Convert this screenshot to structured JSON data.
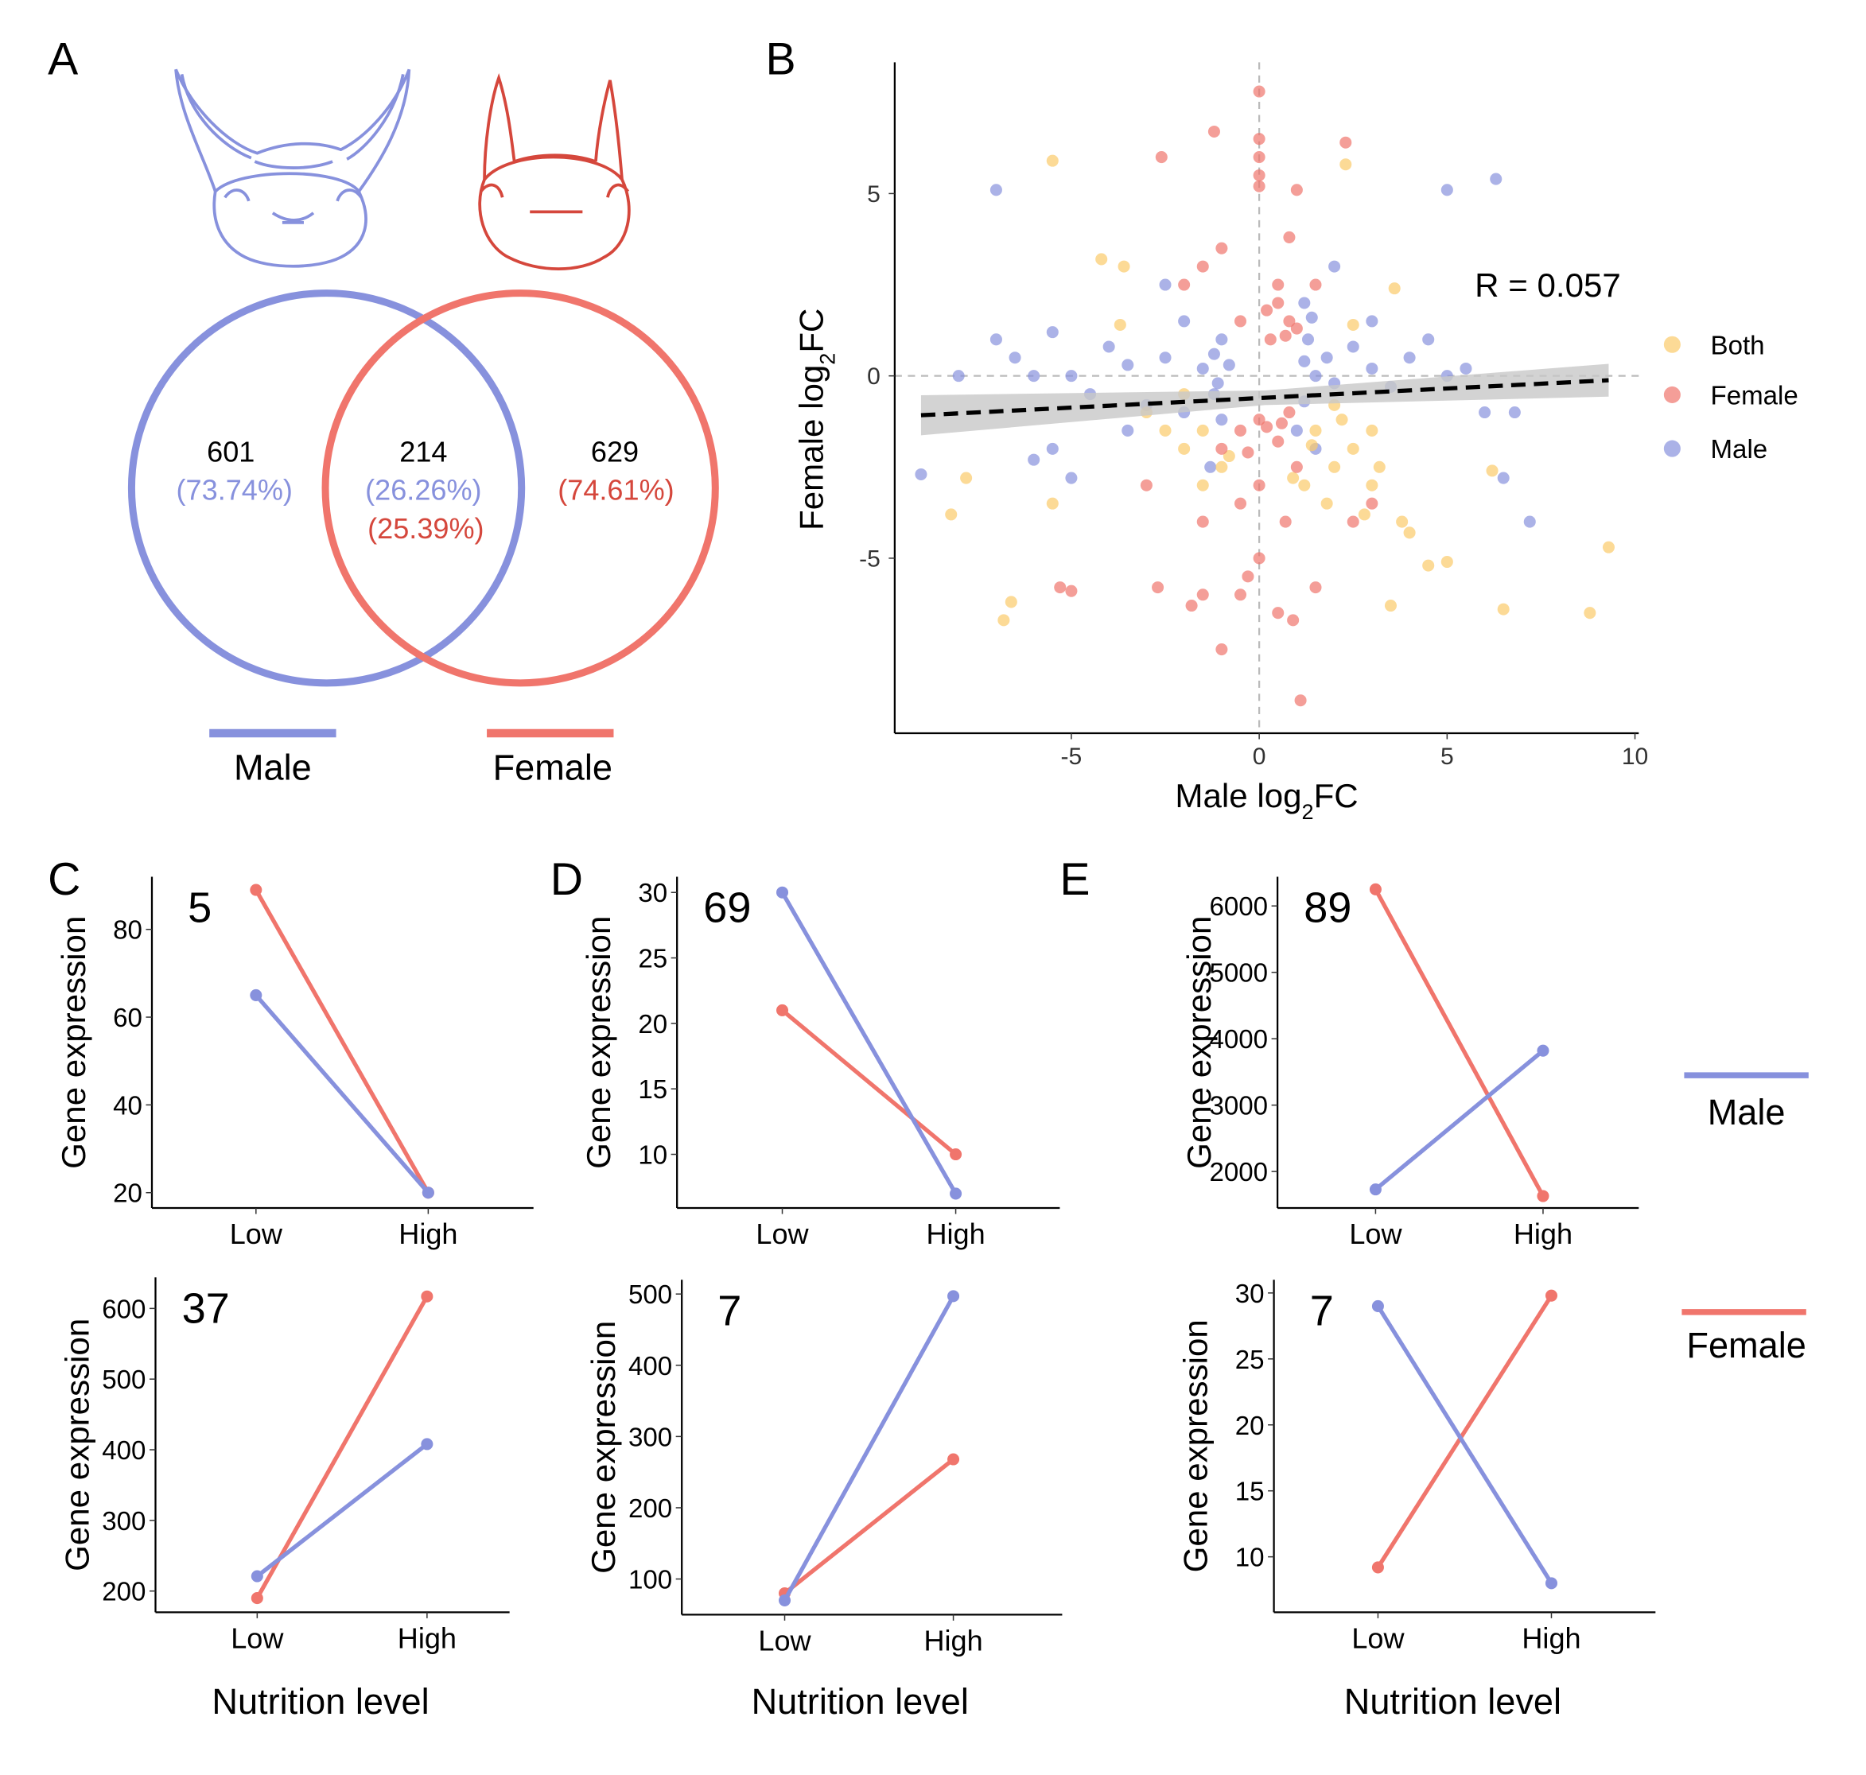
{
  "panels": {
    "a": "A",
    "b": "B",
    "c": "C",
    "d": "D",
    "e": "E"
  },
  "colors": {
    "male": "#8791DD",
    "female": "#F0756C",
    "both": "#FBCB6A",
    "female_text": "#D5473C",
    "regression": "#000000",
    "band": "#C8C8C8"
  },
  "venn": {
    "male_only": {
      "count": "601",
      "pct": "(73.74%)"
    },
    "shared": {
      "count": "214",
      "pct_male": "(26.26%)",
      "pct_female": "(25.39%)"
    },
    "female_only": {
      "count": "629",
      "pct": "(74.61%)"
    },
    "legend": {
      "male": "Male",
      "female": "Female"
    },
    "icons": [
      "male-beetle-head-icon",
      "female-beetle-head-icon"
    ]
  },
  "scatter": {
    "type": "scatter",
    "xlabel": "Male log2FC",
    "ylabel": "Female log2FC",
    "xlim": [
      -9.7,
      10.1
    ],
    "ylim": [
      -9.8,
      8.6
    ],
    "xticks": [
      -5,
      0,
      5,
      10
    ],
    "yticks": [
      -5,
      0,
      5
    ],
    "annotation": "R = 0.057",
    "reference_lines": {
      "x": 0,
      "y": 0
    },
    "regression": {
      "x": [
        -9,
        9.3
      ],
      "y": [
        -1.08,
        -0.12
      ]
    },
    "legend_placement": "right",
    "series": [
      {
        "name": "Both",
        "points": [
          [
            -5.5,
            5.9
          ],
          [
            2.3,
            5.8
          ],
          [
            -4.2,
            3.2
          ],
          [
            -3.6,
            3
          ],
          [
            3.6,
            2.4
          ],
          [
            -3.7,
            1.4
          ],
          [
            2.5,
            1.4
          ],
          [
            -3,
            -1
          ],
          [
            -2.5,
            -1.5
          ],
          [
            -2,
            -2
          ],
          [
            -1.5,
            -1.5
          ],
          [
            -1,
            -2.5
          ],
          [
            1.5,
            -1.5
          ],
          [
            2,
            -2.5
          ],
          [
            2.5,
            -2
          ],
          [
            3,
            -3
          ],
          [
            1.8,
            -3.5
          ],
          [
            3.8,
            -4
          ],
          [
            4,
            -4.3
          ],
          [
            -6.8,
            -6.7
          ],
          [
            -6.6,
            -6.2
          ],
          [
            -8.2,
            -3.8
          ],
          [
            -7.8,
            -2.8
          ],
          [
            -5.5,
            -3.5
          ],
          [
            3.5,
            -6.3
          ],
          [
            4.5,
            -5.2
          ],
          [
            5,
            -5.1
          ],
          [
            6.5,
            -6.4
          ],
          [
            8.8,
            -6.5
          ],
          [
            9.3,
            -4.7
          ],
          [
            6.2,
            -2.6
          ],
          [
            3,
            -1.5
          ],
          [
            -2,
            -0.5
          ],
          [
            2,
            -0.8
          ],
          [
            1.2,
            -3
          ],
          [
            -1.5,
            -3
          ],
          [
            3.2,
            -2.5
          ],
          [
            2.8,
            -3.8
          ],
          [
            1.4,
            -1.9
          ],
          [
            -0.8,
            -2.2
          ],
          [
            0.9,
            -2.8
          ],
          [
            2.2,
            -1.2
          ]
        ]
      },
      {
        "name": "Female",
        "points": [
          [
            0,
            7.8
          ],
          [
            0,
            6.5
          ],
          [
            0,
            6
          ],
          [
            0,
            5.5
          ],
          [
            0,
            5.2
          ],
          [
            -1.2,
            6.7
          ],
          [
            -2.6,
            6
          ],
          [
            2.3,
            6.4
          ],
          [
            1,
            5.1
          ],
          [
            0.8,
            3.8
          ],
          [
            -1,
            3.5
          ],
          [
            -1.5,
            3
          ],
          [
            -2,
            2.5
          ],
          [
            0.5,
            2
          ],
          [
            0.8,
            1.5
          ],
          [
            0.3,
            1
          ],
          [
            1,
            1.3
          ],
          [
            0.5,
            2.5
          ],
          [
            1.5,
            2.5
          ],
          [
            -0.5,
            1.5
          ],
          [
            0.2,
            1.8
          ],
          [
            0.7,
            1.1
          ],
          [
            0,
            -1.2
          ],
          [
            -0.5,
            -1.5
          ],
          [
            0.5,
            -1.8
          ],
          [
            0.8,
            -1
          ],
          [
            -1,
            -2
          ],
          [
            1,
            -2.5
          ],
          [
            0.2,
            -1.4
          ],
          [
            -0.3,
            -2.1
          ],
          [
            0.6,
            -1.3
          ],
          [
            0,
            -3
          ],
          [
            -0.5,
            -3.5
          ],
          [
            0.7,
            -4
          ],
          [
            -1.5,
            -4
          ],
          [
            0,
            -5
          ],
          [
            -0.5,
            -6
          ],
          [
            0.5,
            -6.5
          ],
          [
            -2.7,
            -5.8
          ],
          [
            -5.3,
            -5.8
          ],
          [
            -5,
            -5.9
          ],
          [
            -1.5,
            -6
          ],
          [
            0.9,
            -6.7
          ],
          [
            -1,
            -7.5
          ],
          [
            1.1,
            -8.9
          ],
          [
            2.5,
            -4
          ],
          [
            -3,
            -3
          ],
          [
            3,
            -3.5
          ],
          [
            -0.3,
            -5.5
          ],
          [
            1.5,
            -5.8
          ],
          [
            -1.8,
            -6.3
          ]
        ]
      },
      {
        "name": "Male",
        "points": [
          [
            -7,
            5.1
          ],
          [
            5,
            5.1
          ],
          [
            6.3,
            5.4
          ],
          [
            -8,
            0
          ],
          [
            -7,
            1
          ],
          [
            -6.5,
            0.5
          ],
          [
            -6,
            0
          ],
          [
            -5.5,
            1.2
          ],
          [
            -5,
            0
          ],
          [
            -4.5,
            -0.5
          ],
          [
            -4,
            0.8
          ],
          [
            -3.5,
            0.3
          ],
          [
            -3,
            -0.8
          ],
          [
            -2.5,
            0.5
          ],
          [
            -2,
            1.5
          ],
          [
            -2,
            -1
          ],
          [
            -1.5,
            0.2
          ],
          [
            -1.2,
            -0.5
          ],
          [
            -1,
            1
          ],
          [
            -1,
            -1.2
          ],
          [
            1.2,
            2
          ],
          [
            1.3,
            1
          ],
          [
            1.5,
            0
          ],
          [
            1.2,
            -0.7
          ],
          [
            1.8,
            0.5
          ],
          [
            2,
            -0.2
          ],
          [
            2.5,
            0.8
          ],
          [
            3,
            0.2
          ],
          [
            3.5,
            -0.3
          ],
          [
            4,
            0.5
          ],
          [
            4.5,
            1
          ],
          [
            5,
            0
          ],
          [
            5.5,
            0.2
          ],
          [
            6,
            -1
          ],
          [
            6.5,
            -2.8
          ],
          [
            7.2,
            -4
          ],
          [
            -9,
            -2.7
          ],
          [
            -6,
            -2.3
          ],
          [
            -5,
            -2.8
          ],
          [
            -5.5,
            -2
          ],
          [
            -3.5,
            -1.5
          ],
          [
            -2.5,
            2.5
          ],
          [
            2,
            3
          ],
          [
            3,
            1.5
          ],
          [
            6.8,
            -1
          ],
          [
            -0.8,
            0.3
          ],
          [
            1,
            -1.5
          ],
          [
            -1.3,
            -2.5
          ],
          [
            1.5,
            -2
          ],
          [
            1.2,
            0.4
          ],
          [
            -1.2,
            0.6
          ],
          [
            1.4,
            1.6
          ],
          [
            -1.1,
            -0.2
          ]
        ]
      }
    ]
  },
  "line_charts": {
    "legend": {
      "male": "Male",
      "female": "Female"
    },
    "xlabel": "Nutrition level",
    "ylabel": "Gene expression",
    "charts": [
      {
        "id": "C-top",
        "type": "line",
        "label": "5",
        "categories": [
          "Low",
          "High"
        ],
        "ylim": [
          16.5,
          92
        ],
        "yticks": [
          20,
          40,
          60,
          80
        ],
        "series": [
          {
            "name": "Female",
            "values": [
              89,
              20
            ]
          },
          {
            "name": "Male",
            "values": [
              65,
              20
            ]
          }
        ]
      },
      {
        "id": "C-bottom",
        "type": "line",
        "label": "37",
        "categories": [
          "Low",
          "High"
        ],
        "ylim": [
          170,
          644
        ],
        "yticks": [
          200,
          300,
          400,
          500,
          600
        ],
        "series": [
          {
            "name": "Female",
            "values": [
              190,
              617
            ]
          },
          {
            "name": "Male",
            "values": [
              221,
              408
            ]
          }
        ]
      },
      {
        "id": "D-top",
        "type": "line",
        "label": "69",
        "categories": [
          "Low",
          "High"
        ],
        "ylim": [
          5.9,
          31.2
        ],
        "yticks": [
          10,
          15,
          20,
          25,
          30
        ],
        "series": [
          {
            "name": "Female",
            "values": [
              21,
              10
            ]
          },
          {
            "name": "Male",
            "values": [
              30,
              7
            ]
          }
        ]
      },
      {
        "id": "D-bottom",
        "type": "line",
        "label": "7",
        "categories": [
          "Low",
          "High"
        ],
        "ylim": [
          50,
          520
        ],
        "yticks": [
          100,
          200,
          300,
          400,
          500
        ],
        "series": [
          {
            "name": "Female",
            "values": [
              80,
              268
            ]
          },
          {
            "name": "Male",
            "values": [
              70,
              497
            ]
          }
        ]
      },
      {
        "id": "E-top",
        "type": "line",
        "label": "89",
        "categories": [
          "Low",
          "High"
        ],
        "ylim": [
          1450,
          6440
        ],
        "yticks": [
          2000,
          3000,
          4000,
          5000,
          6000
        ],
        "series": [
          {
            "name": "Female",
            "values": [
              6250,
              1630
            ]
          },
          {
            "name": "Male",
            "values": [
              1730,
              3820
            ]
          }
        ]
      },
      {
        "id": "E-bottom",
        "type": "line",
        "label": "7",
        "categories": [
          "Low",
          "High"
        ],
        "ylim": [
          5.8,
          31
        ],
        "yticks": [
          10,
          15,
          20,
          25,
          30
        ],
        "series": [
          {
            "name": "Female",
            "values": [
              9.2,
              29.8
            ]
          },
          {
            "name": "Male",
            "values": [
              29,
              8
            ]
          }
        ]
      }
    ]
  }
}
